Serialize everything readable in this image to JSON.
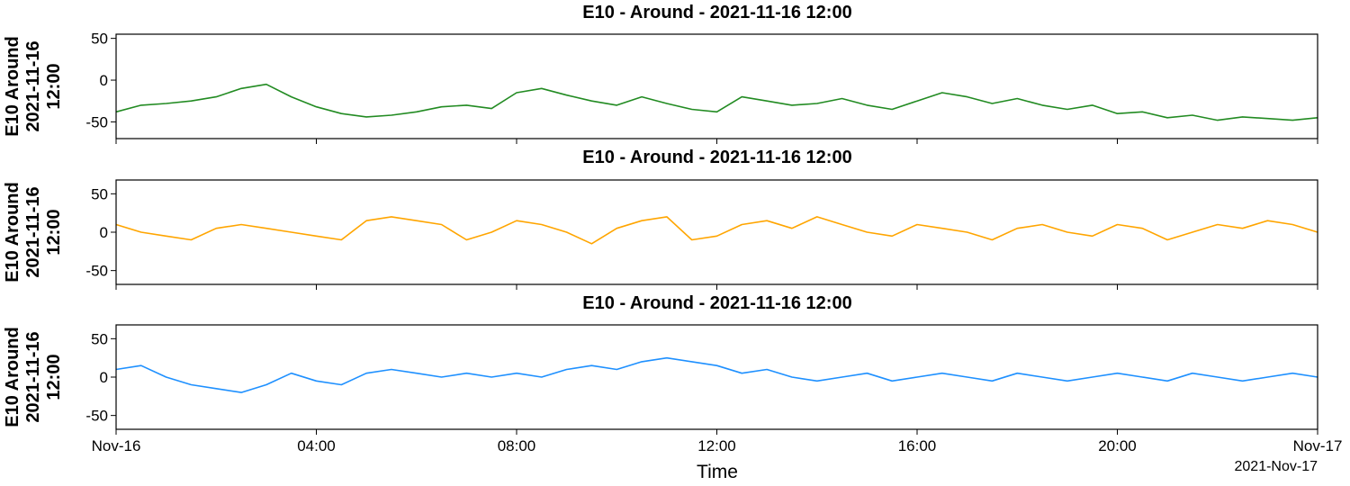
{
  "chart_data": [
    {
      "type": "line",
      "title": "E10 - Around - 2021-11-16 12:00",
      "ylabel": [
        "E10 Around",
        "2021-11-16",
        "12:00"
      ],
      "color": "#228B22",
      "x_range": [
        "2021-11-16 00:00",
        "2021-11-17 00:00"
      ],
      "ylim": [
        -70,
        55
      ],
      "yticks": [
        "50",
        "0",
        "-50"
      ],
      "ytick_values": [
        50,
        0,
        -50
      ],
      "series": [
        {
          "x_hours": [
            0,
            0.5,
            1,
            1.5,
            2,
            2.5,
            3,
            3.5,
            4,
            4.5,
            5,
            5.5,
            6,
            6.5,
            7,
            7.5,
            8,
            8.5,
            9,
            9.5,
            10,
            10.5,
            11,
            11.5,
            12,
            12.5,
            13,
            13.5,
            14,
            14.5,
            15,
            15.5,
            16,
            16.5,
            17,
            17.5,
            18,
            18.5,
            19,
            19.5,
            20,
            20.5,
            21,
            21.5,
            22,
            22.5,
            23,
            23.5,
            24
          ],
          "y": [
            -38,
            -30,
            -28,
            -25,
            -20,
            -10,
            -5,
            -20,
            -32,
            -40,
            -44,
            -42,
            -38,
            -32,
            -30,
            -34,
            -15,
            -10,
            -18,
            -25,
            -30,
            -20,
            -28,
            -35,
            -38,
            -20,
            -25,
            -30,
            -28,
            -22,
            -30,
            -35,
            -25,
            -15,
            -20,
            -28,
            -22,
            -30,
            -35,
            -30,
            -40,
            -38,
            -45,
            -42,
            -48,
            -44,
            -46,
            -48,
            -45
          ]
        }
      ]
    },
    {
      "type": "line",
      "title": "E10 - Around - 2021-11-16 12:00",
      "ylabel": [
        "E10 Around",
        "2021-11-16",
        "12:00"
      ],
      "color": "#FFA500",
      "x_range": [
        "2021-11-16 00:00",
        "2021-11-17 00:00"
      ],
      "ylim": [
        -68,
        68
      ],
      "yticks": [
        "50",
        "0",
        "-50"
      ],
      "ytick_values": [
        50,
        0,
        -50
      ],
      "series": [
        {
          "x_hours": [
            0,
            0.5,
            1,
            1.5,
            2,
            2.5,
            3,
            3.5,
            4,
            4.5,
            5,
            5.5,
            6,
            6.5,
            7,
            7.5,
            8,
            8.5,
            9,
            9.5,
            10,
            10.5,
            11,
            11.5,
            12,
            12.5,
            13,
            13.5,
            14,
            14.5,
            15,
            15.5,
            16,
            16.5,
            17,
            17.5,
            18,
            18.5,
            19,
            19.5,
            20,
            20.5,
            21,
            21.5,
            22,
            22.5,
            23,
            23.5,
            24
          ],
          "y": [
            10,
            0,
            -5,
            -10,
            5,
            10,
            5,
            0,
            -5,
            -10,
            15,
            20,
            15,
            10,
            -10,
            0,
            15,
            10,
            0,
            -15,
            5,
            15,
            20,
            -10,
            -5,
            10,
            15,
            5,
            20,
            10,
            0,
            -5,
            10,
            5,
            0,
            -10,
            5,
            10,
            0,
            -5,
            10,
            5,
            -10,
            0,
            10,
            5,
            15,
            10,
            0
          ]
        }
      ]
    },
    {
      "type": "line",
      "title": "E10 - Around - 2021-11-16 12:00",
      "ylabel": [
        "E10 Around",
        "2021-11-16",
        "12:00"
      ],
      "color": "#1E90FF",
      "x_range": [
        "2021-11-16 00:00",
        "2021-11-17 00:00"
      ],
      "xticks": [
        "Nov-16",
        "04:00",
        "08:00",
        "12:00",
        "16:00",
        "20:00",
        "Nov-17"
      ],
      "xlabel": "Time",
      "x_offset_label": "2021-Nov-17",
      "ylim": [
        -68,
        68
      ],
      "yticks": [
        "50",
        "0",
        "-50"
      ],
      "ytick_values": [
        50,
        0,
        -50
      ],
      "series": [
        {
          "x_hours": [
            0,
            0.5,
            1,
            1.5,
            2,
            2.5,
            3,
            3.5,
            4,
            4.5,
            5,
            5.5,
            6,
            6.5,
            7,
            7.5,
            8,
            8.5,
            9,
            9.5,
            10,
            10.5,
            11,
            11.5,
            12,
            12.5,
            13,
            13.5,
            14,
            14.5,
            15,
            15.5,
            16,
            16.5,
            17,
            17.5,
            18,
            18.5,
            19,
            19.5,
            20,
            20.5,
            21,
            21.5,
            22,
            22.5,
            23,
            23.5,
            24
          ],
          "y": [
            10,
            15,
            0,
            -10,
            -15,
            -20,
            -10,
            5,
            -5,
            -10,
            5,
            10,
            5,
            0,
            5,
            0,
            5,
            0,
            10,
            15,
            10,
            20,
            25,
            20,
            15,
            5,
            10,
            0,
            -5,
            0,
            5,
            -5,
            0,
            5,
            0,
            -5,
            5,
            0,
            -5,
            0,
            5,
            0,
            -5,
            5,
            0,
            -5,
            0,
            5,
            0
          ]
        }
      ]
    }
  ]
}
